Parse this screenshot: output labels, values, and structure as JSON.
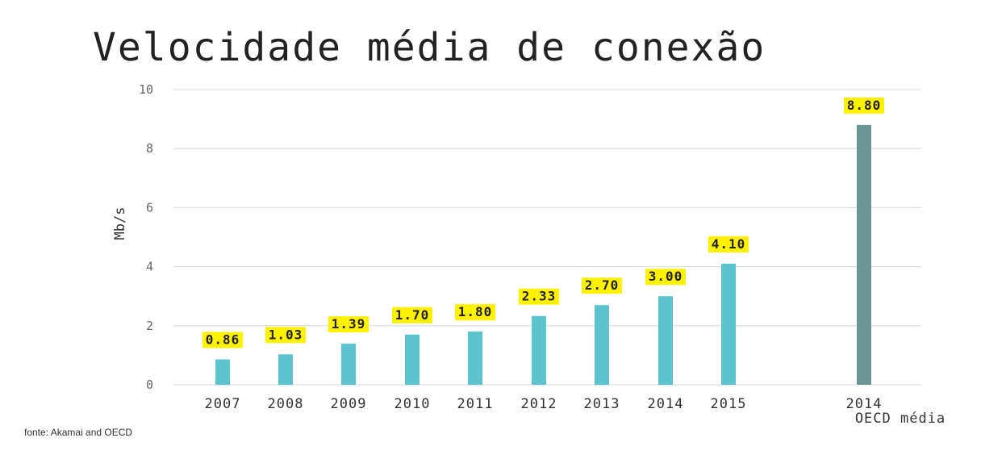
{
  "chart_data": {
    "type": "bar",
    "title": "Velocidade média de conexão",
    "ylabel": "Mb/s",
    "ylim": [
      0,
      10
    ],
    "yticks": [
      "0",
      "2",
      "4",
      "6",
      "8",
      "10"
    ],
    "categories": [
      [
        "2007"
      ],
      [
        "2008"
      ],
      [
        "2009"
      ],
      [
        "2010"
      ],
      [
        "2011"
      ],
      [
        "2012"
      ],
      [
        "2013"
      ],
      [
        "2014"
      ],
      [
        "2015"
      ],
      [
        "2014",
        "OECD média"
      ]
    ],
    "values": [
      0.86,
      1.03,
      1.39,
      1.7,
      1.8,
      2.33,
      2.7,
      3.0,
      4.1,
      8.8
    ],
    "labels": [
      "0.86",
      "1.03",
      "1.39",
      "1.70",
      "1.80",
      "2.33",
      "2.70",
      "3.00",
      "4.10",
      "8.80"
    ],
    "grid": true,
    "source": "fonte:  Akamai and OECD",
    "colors": {
      "bar": "#5bc4cf",
      "highlight_bar": "#6a9594",
      "label_bg": "#fff200",
      "grid": "#d6d6d6"
    }
  }
}
